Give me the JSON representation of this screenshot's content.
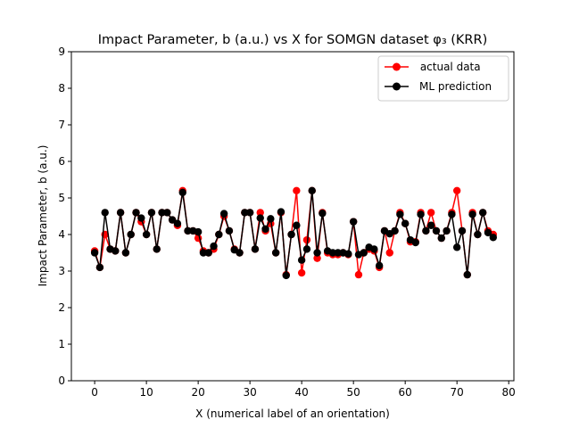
{
  "chart_data": {
    "type": "line",
    "title": "Impact Parameter, b (a.u.) vs X for SOMGN dataset φ₃ (KRR)",
    "xlabel": "X (numerical label of an orientation)",
    "ylabel": "Impact Parameter, b (a.u.)",
    "xlim": [
      -4.5,
      81
    ],
    "ylim": [
      0,
      9
    ],
    "x_ticks": [
      0,
      10,
      20,
      30,
      40,
      50,
      60,
      70,
      80
    ],
    "y_ticks": [
      0,
      1,
      2,
      3,
      4,
      5,
      6,
      7,
      8,
      9
    ],
    "grid": false,
    "legend_position": "upper right",
    "x": [
      0,
      1,
      2,
      3,
      4,
      5,
      6,
      7,
      8,
      9,
      10,
      11,
      12,
      13,
      14,
      15,
      16,
      17,
      18,
      19,
      20,
      21,
      22,
      23,
      24,
      25,
      26,
      27,
      28,
      29,
      30,
      31,
      32,
      33,
      34,
      35,
      36,
      37,
      38,
      39,
      40,
      41,
      42,
      43,
      44,
      45,
      46,
      47,
      48,
      49,
      50,
      51,
      52,
      53,
      54,
      55,
      56,
      57,
      58,
      59,
      60,
      61,
      62,
      63,
      64,
      65,
      66,
      67,
      68,
      69,
      70,
      71,
      72,
      73,
      74,
      75,
      76,
      77
    ],
    "series": [
      {
        "name": " actual data",
        "color": "#ff0000",
        "values": [
          3.55,
          3.1,
          4.0,
          3.6,
          3.55,
          4.6,
          3.5,
          4.0,
          4.6,
          4.35,
          4.0,
          4.6,
          3.6,
          4.6,
          4.6,
          4.4,
          4.25,
          5.2,
          4.1,
          4.1,
          3.9,
          3.55,
          3.5,
          3.6,
          4.0,
          4.5,
          4.1,
          3.6,
          3.5,
          4.6,
          4.6,
          3.6,
          4.6,
          4.1,
          4.3,
          3.5,
          4.6,
          2.9,
          4.0,
          5.2,
          2.95,
          3.85,
          5.2,
          3.35,
          4.6,
          3.5,
          3.45,
          3.45,
          3.5,
          3.45,
          4.35,
          2.9,
          3.5,
          3.6,
          3.55,
          3.1,
          4.1,
          3.5,
          4.1,
          4.6,
          4.3,
          3.8,
          3.8,
          4.6,
          4.1,
          4.6,
          4.1,
          3.9,
          4.1,
          4.6,
          5.2,
          4.1,
          2.9,
          4.6,
          4.0,
          4.6,
          4.1,
          4.0
        ]
      },
      {
        "name": "ML prediction",
        "color": "#000000",
        "values": [
          3.5,
          3.1,
          4.6,
          3.6,
          3.55,
          4.6,
          3.5,
          4.0,
          4.6,
          4.45,
          4.0,
          4.6,
          3.6,
          4.6,
          4.6,
          4.4,
          4.3,
          5.15,
          4.1,
          4.1,
          4.07,
          3.5,
          3.5,
          3.68,
          4.0,
          4.57,
          4.1,
          3.58,
          3.5,
          4.6,
          4.6,
          3.6,
          4.45,
          4.15,
          4.43,
          3.5,
          4.62,
          2.88,
          4.0,
          4.25,
          3.3,
          3.6,
          5.2,
          3.5,
          4.58,
          3.55,
          3.5,
          3.5,
          3.5,
          3.47,
          4.35,
          3.45,
          3.5,
          3.65,
          3.6,
          3.15,
          4.1,
          4.02,
          4.1,
          4.55,
          4.3,
          3.85,
          3.78,
          4.55,
          4.1,
          4.25,
          4.1,
          3.9,
          4.1,
          4.55,
          3.65,
          4.1,
          2.9,
          4.55,
          4.0,
          4.6,
          4.05,
          3.92
        ]
      }
    ]
  }
}
